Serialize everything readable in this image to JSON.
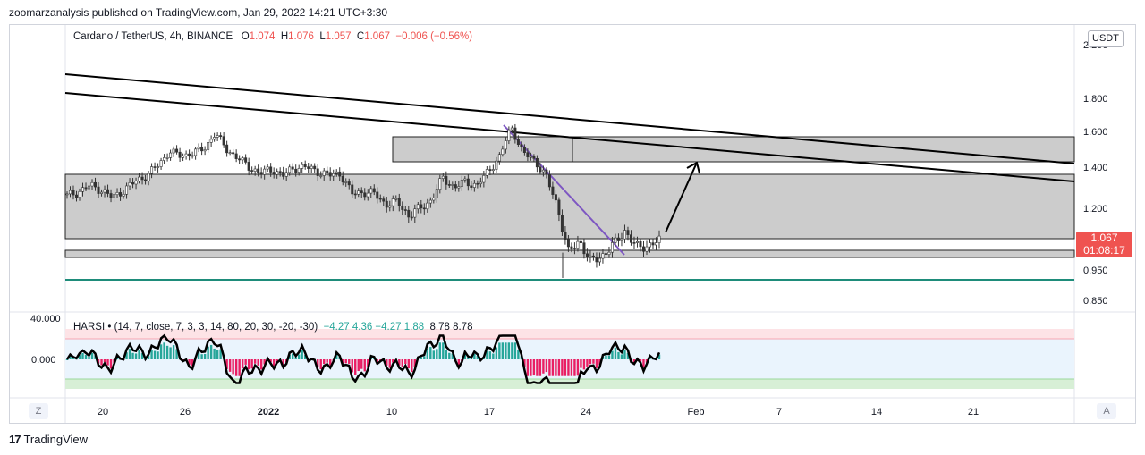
{
  "header": {
    "attribution": "zoomarzanalysis published on TradingView.com, Jan 29, 2022 14:21 UTC+3:30"
  },
  "legend": {
    "symbol": "Cardano / TetherUS, 4h, BINANCE",
    "open_label": "O",
    "open": "1.074",
    "high_label": "H",
    "high": "1.076",
    "low_label": "L",
    "low": "1.057",
    "close_label": "C",
    "close": "1.067",
    "change": "−0.006 (−0.56%)"
  },
  "currency_button": "USDT",
  "price_badge": {
    "price": "1.067",
    "countdown": "01:08:17"
  },
  "harsi": {
    "name": "HARSI",
    "params": "(14, 7, close, 7, 3, 3, 14, 80, 20, 30, -20, -30)",
    "values_green": "−4.27  4.36  −4.27  1.88",
    "values_dark": "8.78  8.78"
  },
  "buttons": {
    "z": "Z",
    "a": "A"
  },
  "brand": {
    "logo": "17",
    "name": "TradingView"
  },
  "chart_data": [
    {
      "type": "candlestick",
      "title": "Cardano / TetherUS, 4h, BINANCE",
      "ylabel": "USDT",
      "y_ticks": [
        "2.200",
        "1.800",
        "1.600",
        "1.400",
        "1.200",
        "0.950",
        "0.850"
      ],
      "y_tick_values": [
        2.2,
        1.8,
        1.6,
        1.4,
        1.2,
        0.95,
        0.85
      ],
      "x_ticks": [
        "20",
        "26",
        "2022",
        "10",
        "17",
        "24",
        "Feb",
        "7",
        "14",
        "21"
      ],
      "last_price": 1.067,
      "approx_closes": [
        1.26,
        1.28,
        1.31,
        1.29,
        1.25,
        1.29,
        1.33,
        1.36,
        1.41,
        1.49,
        1.46,
        1.48,
        1.5,
        1.59,
        1.5,
        1.45,
        1.4,
        1.37,
        1.39,
        1.36,
        1.4,
        1.4,
        1.38,
        1.36,
        1.37,
        1.27,
        1.28,
        1.27,
        1.22,
        1.23,
        1.17,
        1.2,
        1.24,
        1.35,
        1.3,
        1.33,
        1.31,
        1.38,
        1.46,
        1.63,
        1.48,
        1.44,
        1.36,
        1.22,
        1.02,
        1.07,
        0.98,
        1.01,
        1.05,
        1.11,
        1.04,
        1.05,
        1.067
      ],
      "zones": [
        {
          "from": 1.37,
          "to": 1.07
        },
        {
          "from": 1.56,
          "to": 1.43
        },
        {
          "from": 1.02,
          "to": 0.995
        }
      ],
      "support_line": 0.93
    },
    {
      "type": "area",
      "title": "HARSI",
      "y_ticks": [
        "40.000",
        "0.000"
      ],
      "y_tick_values": [
        40,
        0
      ]
    }
  ]
}
